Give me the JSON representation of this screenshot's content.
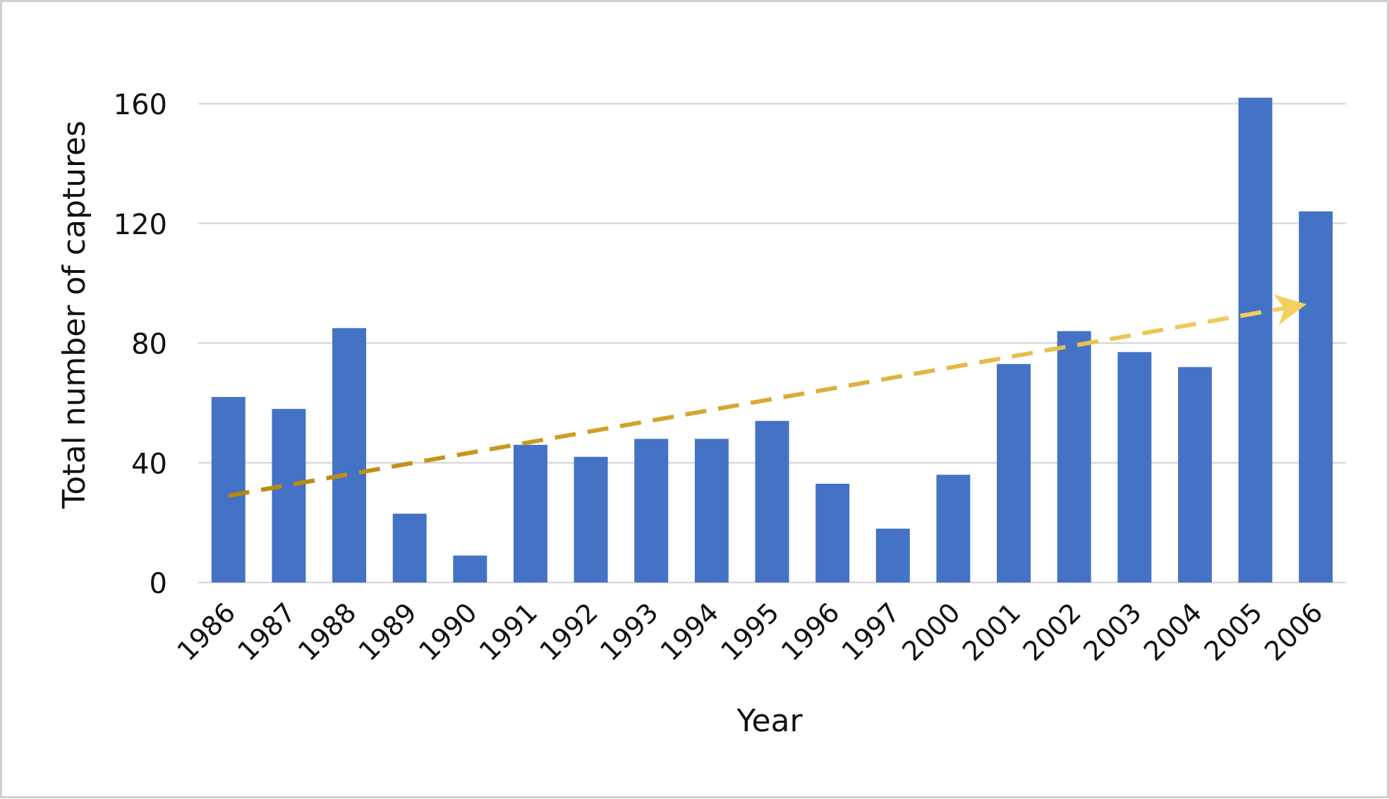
{
  "chart_data": {
    "type": "bar",
    "title": "",
    "xlabel": "Year",
    "ylabel": "Total number of captures",
    "categories": [
      "1986",
      "1987",
      "1988",
      "1989",
      "1990",
      "1991",
      "1992",
      "1993",
      "1994",
      "1995",
      "1996",
      "1997",
      "2000",
      "2001",
      "2002",
      "2003",
      "2004",
      "2005",
      "2006"
    ],
    "values": [
      62,
      58,
      85,
      23,
      9,
      46,
      42,
      48,
      48,
      54,
      33,
      18,
      36,
      73,
      84,
      77,
      72,
      162,
      124
    ],
    "ylim": [
      0,
      160
    ],
    "yticks": [
      "0",
      "40",
      "80",
      "120",
      "160"
    ],
    "grid": true,
    "legend": "none",
    "colors": {
      "bar": "#4472c4",
      "grid": "#d9d9d9",
      "trend_start": "#b8860b",
      "trend_end": "#f5cf5f"
    },
    "trend_arrow": {
      "start": {
        "category": "1986",
        "value": 29
      },
      "end": {
        "category": "2006",
        "value": 93
      }
    }
  }
}
